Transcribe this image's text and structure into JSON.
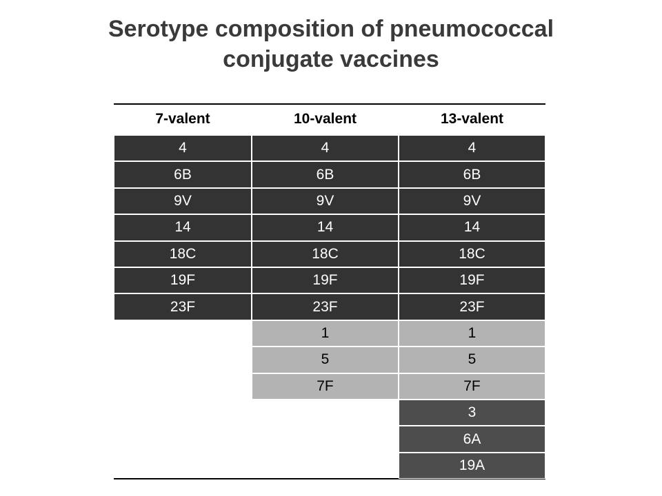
{
  "header": {
    "title": "Serotype composition of pneumococcal conjugate vaccines"
  },
  "table": {
    "columns": [
      "7-valent",
      "10-valent",
      "13-valent"
    ],
    "sections": [
      {
        "rows": [
          [
            "4",
            "4",
            "4"
          ],
          [
            "6B",
            "6B",
            "6B"
          ],
          [
            "9V",
            "9V",
            "9V"
          ],
          [
            "14",
            "14",
            "14"
          ],
          [
            "18C",
            "18C",
            "18C"
          ],
          [
            "19F",
            "19F",
            "19F"
          ],
          [
            "23F",
            "23F",
            "23F"
          ]
        ]
      },
      {
        "rows": [
          [
            null,
            "1",
            "1"
          ],
          [
            null,
            "5",
            "5"
          ],
          [
            null,
            "7F",
            "7F"
          ]
        ]
      },
      {
        "rows": [
          [
            null,
            null,
            "3"
          ],
          [
            null,
            null,
            "6A"
          ],
          [
            null,
            null,
            "19A"
          ]
        ]
      }
    ]
  }
}
